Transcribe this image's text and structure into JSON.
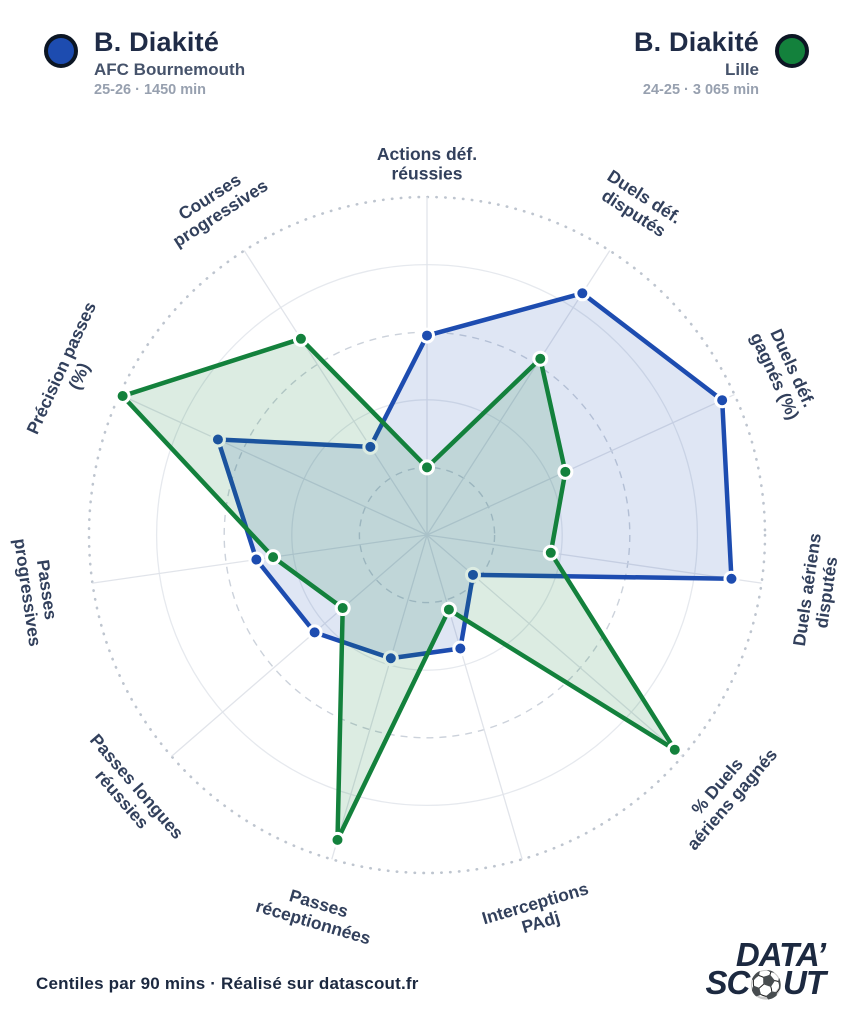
{
  "players": [
    {
      "name": "B. Diakité",
      "team": "AFC Bournemouth",
      "meta": "25-26 · 1450 min",
      "color": "#1d4cb0"
    },
    {
      "name": "B. Diakité",
      "team": "Lille",
      "meta": "24-25 · 3 065 min",
      "color": "#13813c"
    }
  ],
  "chart_data": {
    "type": "radar",
    "title": "",
    "categories": [
      "Actions déf. réussies",
      "Duels déf. disputés",
      "Duels déf. gagnés (%)",
      "Duels aériens disputés",
      "% Duels aériens gagnés",
      "Interceptions PAdj",
      "Passes réceptionnées",
      "Passes longues réussies",
      "Passes progressives",
      "Précision passes (%)",
      "Courses progressives"
    ],
    "label_lines": [
      [
        "Actions déf.",
        "réussies"
      ],
      [
        "Duels déf.",
        "disputés"
      ],
      [
        "Duels déf.",
        "gagnés (%)"
      ],
      [
        "Duels aériens",
        "disputés"
      ],
      [
        "% Duels",
        "aériens gagnés"
      ],
      [
        "Interceptions",
        "PAdj"
      ],
      [
        "Passes",
        "réceptionnées"
      ],
      [
        "Passes longues",
        "réussies"
      ],
      [
        "Passes",
        "progressives"
      ],
      [
        "Précision passes",
        "(%)"
      ],
      [
        "Courses",
        "progressives"
      ]
    ],
    "rmax": 100,
    "rings": [
      {
        "value": 20,
        "style": "dashed"
      },
      {
        "value": 40,
        "style": "solid"
      },
      {
        "value": 60,
        "style": "dashed"
      },
      {
        "value": 80,
        "style": "solid"
      },
      {
        "value": 100,
        "style": "dotted"
      }
    ],
    "grid": true,
    "legend_position": "top",
    "series": [
      {
        "name": "B. Diakité — AFC Bournemouth 25-26",
        "color": "#1d4cb0",
        "fill": "rgba(30,75,180,0.14)",
        "values": [
          59,
          85,
          96,
          91,
          18,
          35,
          38,
          44,
          51,
          68,
          31
        ]
      },
      {
        "name": "B. Diakité — Lille 24-25",
        "color": "#13813c",
        "fill": "rgba(20,129,60,0.15)",
        "values": [
          20,
          62,
          45,
          37,
          97,
          23,
          94,
          33,
          46,
          99,
          69
        ]
      }
    ]
  },
  "colors": {
    "axis_label": "#32405c",
    "spoke": "#e1e4ea",
    "ring_solid": "#e6e9ee",
    "ring_dashed": "#ccd2db",
    "ring_dotted": "#bec5cf"
  },
  "footer": {
    "caption": "Centiles par 90 mins · Réalisé sur datascout.fr"
  },
  "logo": {
    "line1": "DATA’",
    "line2_pre": "SC",
    "line2_ball": "⚽",
    "line2_post": "UT"
  }
}
